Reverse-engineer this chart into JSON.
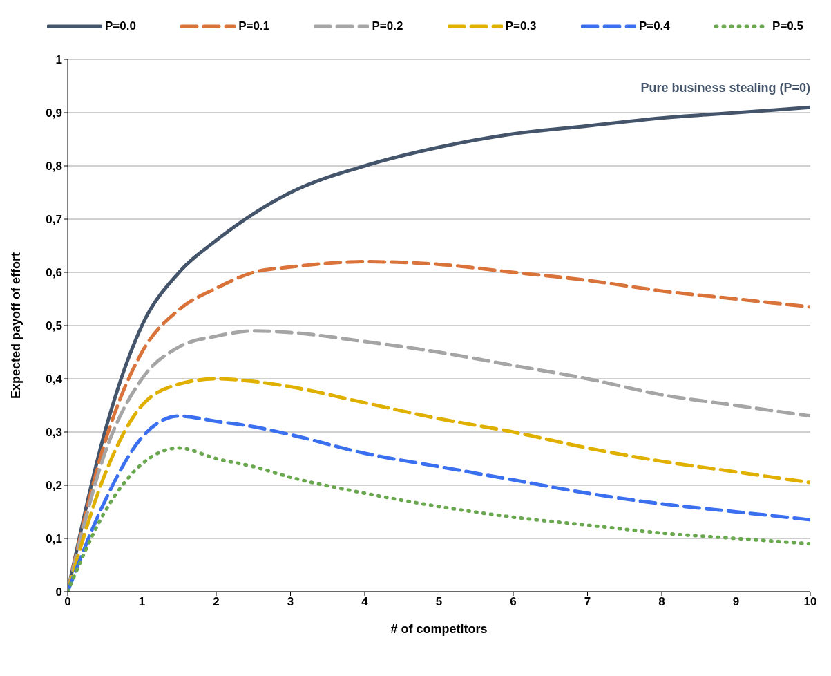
{
  "chart_data": {
    "type": "line",
    "xlabel": "# of competitors",
    "ylabel": "Expected payoff of effort",
    "xlim": [
      0,
      10
    ],
    "xticks": [
      0,
      1,
      2,
      3,
      4,
      5,
      6,
      7,
      8,
      9,
      10
    ],
    "ylim": [
      0,
      1
    ],
    "yticks": [
      0,
      {
        "value": 0.1,
        "label": "0,1"
      },
      {
        "value": 0.2,
        "label": "0,2"
      },
      {
        "value": 0.3,
        "label": "0,3"
      },
      {
        "value": 0.4,
        "label": "0,4"
      },
      {
        "value": 0.5,
        "label": "0,5"
      },
      {
        "value": 0.6,
        "label": "0,6"
      },
      {
        "value": 0.7,
        "label": "0,7"
      },
      {
        "value": 0.8,
        "label": "0,8"
      },
      {
        "value": 0.9,
        "label": "0,9"
      },
      1
    ],
    "grid": "y",
    "legend": "top",
    "marker": "none",
    "x": [
      0,
      0.5,
      1,
      1.5,
      2,
      2.5,
      3,
      4,
      5,
      6,
      7,
      8,
      9,
      10
    ],
    "series": [
      {
        "name": "P=0.0",
        "color": "#44546a",
        "line_style": "solid",
        "values": [
          0,
          0.3,
          0.5,
          0.6,
          0.66,
          0.71,
          0.75,
          0.8,
          0.835,
          0.86,
          0.875,
          0.89,
          0.9,
          0.91
        ]
      },
      {
        "name": "P=0.1",
        "color": "#d9733a",
        "line_style": "dashed",
        "values": [
          0,
          0.28,
          0.45,
          0.53,
          0.57,
          0.6,
          0.61,
          0.62,
          0.615,
          0.6,
          0.585,
          0.565,
          0.55,
          0.535
        ]
      },
      {
        "name": "P=0.2",
        "color": "#a5a5a5",
        "line_style": "dashed",
        "values": [
          0,
          0.26,
          0.4,
          0.46,
          0.48,
          0.49,
          0.487,
          0.47,
          0.45,
          0.425,
          0.4,
          0.37,
          0.35,
          0.33
        ]
      },
      {
        "name": "P=0.3",
        "color": "#e0b000",
        "line_style": "dashed",
        "values": [
          0,
          0.22,
          0.35,
          0.39,
          0.4,
          0.395,
          0.385,
          0.355,
          0.325,
          0.3,
          0.27,
          0.245,
          0.225,
          0.205
        ]
      },
      {
        "name": "P=0.4",
        "color": "#3a6ff0",
        "line_style": "dashed",
        "values": [
          0,
          0.17,
          0.29,
          0.33,
          0.32,
          0.31,
          0.295,
          0.26,
          0.235,
          0.21,
          0.185,
          0.165,
          0.15,
          0.135
        ]
      },
      {
        "name": "P=0.5",
        "color": "#6aa84f",
        "line_style": "dotted",
        "values": [
          0,
          0.15,
          0.24,
          0.27,
          0.25,
          0.235,
          0.215,
          0.185,
          0.16,
          0.14,
          0.125,
          0.11,
          0.1,
          0.09
        ]
      }
    ],
    "annotations": [
      {
        "text": "Pure business stealing (P=0)",
        "x": 10,
        "y": 0.91
      }
    ]
  }
}
